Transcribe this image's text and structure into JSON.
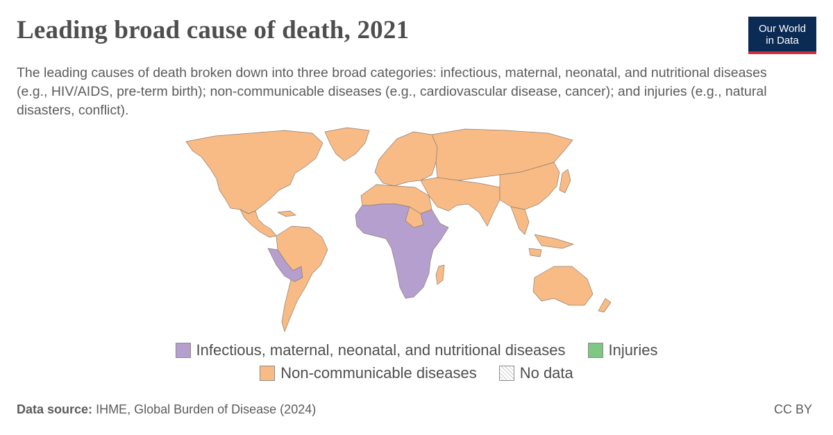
{
  "header": {
    "title": "Leading broad cause of death, 2021",
    "subtitle": "The leading causes of death broken down into three broad categories: infectious, maternal, neonatal, and nutritional diseases (e.g., HIV/AIDS, pre-term birth); non-communicable diseases (e.g., cardiovascular disease, cancer); and injuries (e.g., natural disasters, conflict).",
    "logo_line1": "Our World",
    "logo_line2": "in Data"
  },
  "colors": {
    "infectious": "#b59fcf",
    "injuries": "#7ec883",
    "ncd": "#f9bb85",
    "border": "#8a7d70",
    "logo_bg": "#0b2a54",
    "logo_accent": "#d42b3b"
  },
  "legend": {
    "items": [
      {
        "label": "Infectious, maternal, neonatal, and nutritional diseases",
        "color": "#b59fcf"
      },
      {
        "label": "Injuries",
        "color": "#7ec883"
      },
      {
        "label": "Non-communicable diseases",
        "color": "#f9bb85"
      },
      {
        "label": "No data",
        "color": "hatch"
      }
    ]
  },
  "footer": {
    "source_label": "Data source:",
    "source_text": "IHME, Global Burden of Disease (2024)",
    "license": "CC BY"
  }
}
